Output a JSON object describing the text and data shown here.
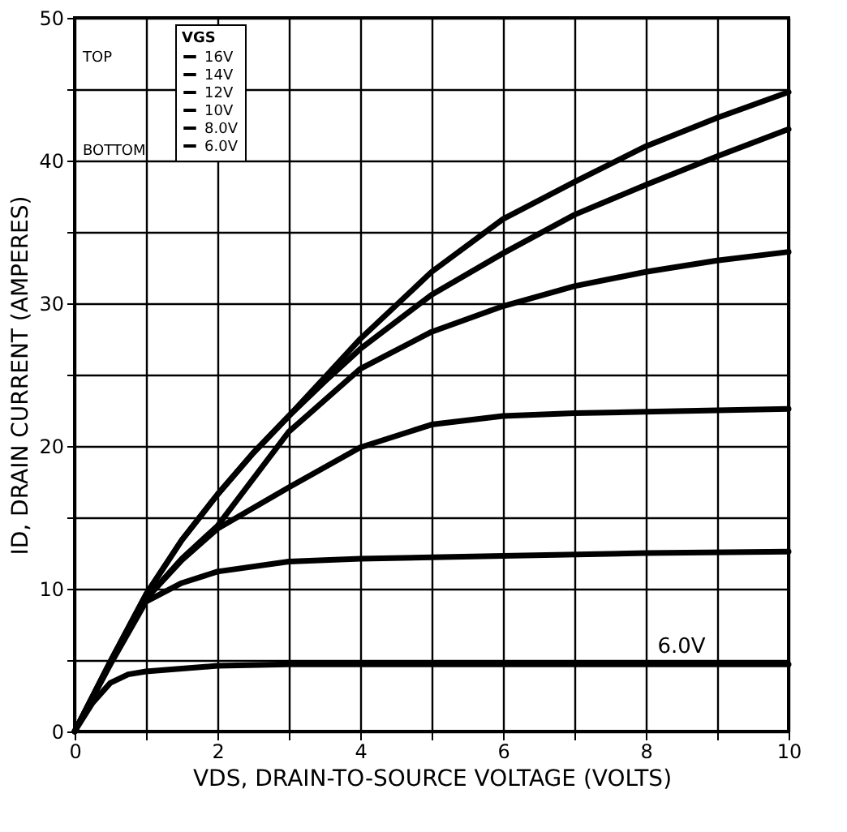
{
  "chart_data": {
    "type": "line",
    "xlabel": "VDS, DRAIN-TO-SOURCE VOLTAGE (VOLTS)",
    "ylabel": "ID, DRAIN CURRENT (AMPERES)",
    "legend_title": "VGS",
    "legend": "top left",
    "grid": true,
    "marker": "none",
    "line_style": "solid",
    "xlim": [
      0,
      10
    ],
    "ylim": [
      0,
      50
    ],
    "xticks": [
      0,
      {
        "value": 1,
        "label": null
      },
      2,
      {
        "value": 3,
        "label": null
      },
      4,
      {
        "value": 5,
        "label": null
      },
      6,
      {
        "value": 7,
        "label": null
      },
      8,
      {
        "value": 9,
        "label": null
      },
      10
    ],
    "yticks": [
      0,
      {
        "value": 5,
        "label": null
      },
      10,
      {
        "value": 15,
        "label": null
      },
      20,
      {
        "value": 25,
        "label": null
      },
      30,
      {
        "value": 35,
        "label": null
      },
      40,
      {
        "value": 45,
        "label": null
      },
      50
    ],
    "annotations": [
      "TOP",
      "BOTTOM",
      {
        "text": "6.0V",
        "x": 8.5,
        "y": 4.7
      }
    ],
    "series": [
      {
        "name": "16V",
        "color": "#000000",
        "x": [
          0,
          0.5,
          1,
          1.5,
          2,
          2.5,
          3,
          3.5,
          4,
          5,
          6,
          7,
          8,
          9,
          10
        ],
        "values": [
          0,
          4.9,
          9.6,
          13.4,
          16.6,
          19.5,
          22.1,
          24.8,
          27.5,
          32.2,
          35.9,
          38.5,
          41,
          43,
          44.8
        ]
      },
      {
        "name": "14V",
        "color": "#000000",
        "x": [
          0,
          0.5,
          1,
          1.5,
          2,
          2.5,
          3,
          3.5,
          4,
          5,
          6,
          7,
          8,
          9,
          10
        ],
        "values": [
          0,
          4.9,
          9.6,
          13.4,
          16.6,
          19.5,
          22.1,
          24.5,
          26.8,
          30.6,
          33.5,
          36.2,
          38.3,
          40.3,
          42.2
        ]
      },
      {
        "name": "12V",
        "color": "#000000",
        "x": [
          0,
          0.5,
          1,
          1.5,
          2,
          3,
          4,
          5,
          6,
          7,
          8,
          9,
          10
        ],
        "values": [
          0,
          4.8,
          9.3,
          12.1,
          14.4,
          21,
          25.4,
          28,
          29.8,
          31.2,
          32.2,
          33,
          33.6
        ]
      },
      {
        "name": "10V",
        "color": "#000000",
        "x": [
          0,
          0.5,
          1,
          1.5,
          2,
          3,
          4,
          5,
          6,
          7,
          8,
          9,
          10
        ],
        "values": [
          0,
          4.8,
          9.3,
          12,
          14.2,
          17.1,
          19.9,
          21.5,
          22.1,
          22.3,
          22.4,
          22.5,
          22.6
        ]
      },
      {
        "name": "8.0V",
        "color": "#000000",
        "x": [
          0,
          0.5,
          1,
          1.5,
          2,
          3,
          4,
          6,
          8,
          10
        ],
        "values": [
          0,
          4.7,
          9.1,
          10.4,
          11.2,
          11.9,
          12.1,
          12.3,
          12.5,
          12.6
        ]
      },
      {
        "name": "6.0V",
        "color": "#000000",
        "x": [
          0,
          0.25,
          0.5,
          0.75,
          1,
          1.5,
          2,
          3,
          10
        ],
        "values": [
          0,
          2,
          3.4,
          4,
          4.2,
          4.4,
          4.6,
          4.7,
          4.7
        ]
      }
    ]
  }
}
